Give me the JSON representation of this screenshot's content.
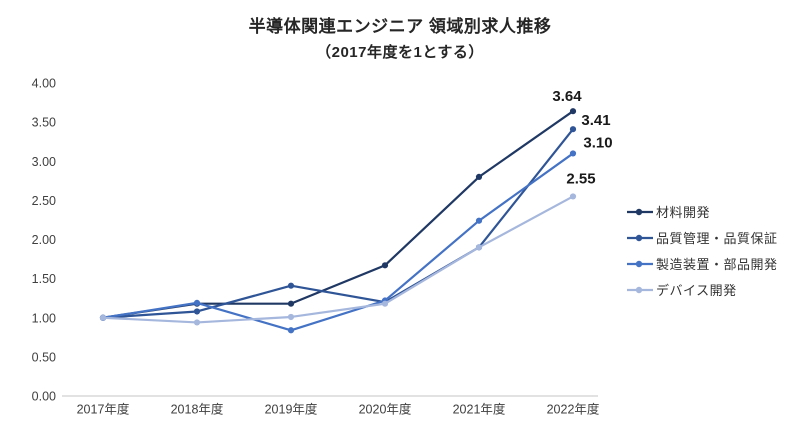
{
  "chart_data": {
    "type": "line",
    "title": "半導体関連エンジニア 領域別求人推移",
    "subtitle": "（2017年度を1とする）",
    "categories": [
      "2017年度",
      "2018年度",
      "2019年度",
      "2020年度",
      "2021年度",
      "2022年度"
    ],
    "series": [
      {
        "name": "材料開発",
        "color": "#1f3864",
        "values": [
          1.0,
          1.18,
          1.18,
          1.67,
          2.8,
          3.64
        ],
        "end_label": "3.64"
      },
      {
        "name": "品質管理・品質保証",
        "color": "#2f5597",
        "values": [
          1.0,
          1.08,
          1.41,
          1.2,
          1.9,
          3.41
        ],
        "end_label": "3.41"
      },
      {
        "name": "製造装置・部品開発",
        "color": "#4472c4",
        "values": [
          1.0,
          1.19,
          0.84,
          1.22,
          2.24,
          3.1
        ],
        "end_label": "3.10"
      },
      {
        "name": "デバイス開発",
        "color": "#a6b7dd",
        "values": [
          1.0,
          0.94,
          1.01,
          1.18,
          1.9,
          2.55
        ],
        "end_label": "2.55"
      }
    ],
    "y_axis": {
      "min": 0,
      "max": 4,
      "tick_values": [
        0,
        0.5,
        1,
        1.5,
        2,
        2.5,
        3,
        3.5,
        4
      ],
      "tick_labels": [
        "0.00",
        "0.50",
        "1.00",
        "1.50",
        "2.00",
        "2.50",
        "3.00",
        "3.50",
        "4.00"
      ]
    },
    "legend_position": "right",
    "gridlines": false,
    "axis_color": "#d9d9d9",
    "tick_text_color": "#404040",
    "data_label_color": "#1a1a1a"
  }
}
